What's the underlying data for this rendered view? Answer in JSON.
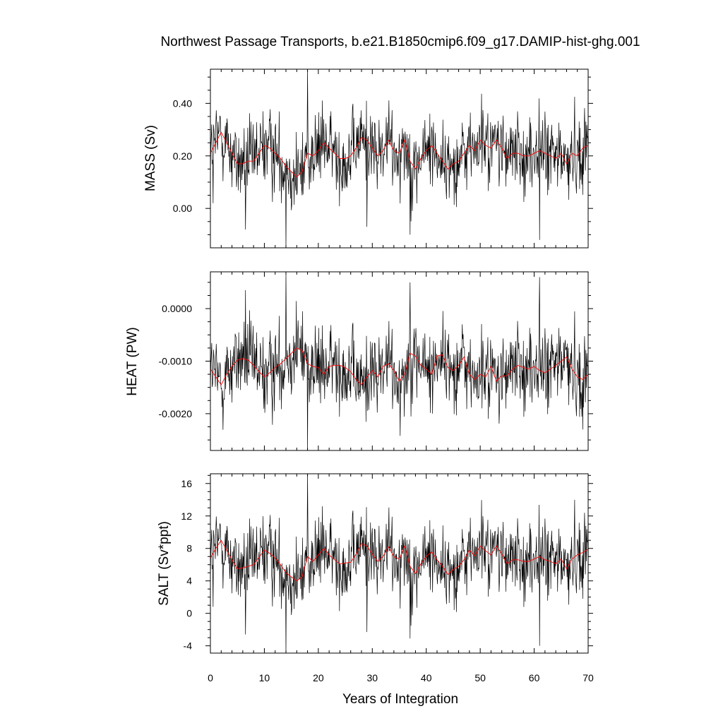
{
  "chart_data": {
    "type": "line",
    "title": "Northwest Passage Transports, b.e21.B1850cmip6.f09_g17.DAMIP-hist-ghg.001",
    "xlabel": "Years of Integration",
    "xlim": [
      0,
      70
    ],
    "xticks": [
      0,
      10,
      20,
      30,
      40,
      50,
      60,
      70
    ],
    "xtick_labels": [
      "0",
      "10",
      "20",
      "30",
      "40",
      "50",
      "60",
      "70"
    ],
    "line_colors": {
      "monthly": "#000000",
      "smoothed": "#ff0000"
    },
    "panels": [
      {
        "ylabel": "MASS (Sv)",
        "ylim": [
          -0.15,
          0.53
        ],
        "yticks": [
          0.0,
          0.2,
          0.4
        ],
        "ytick_labels": [
          "0.00",
          "0.20",
          "0.40"
        ],
        "smoothed": {
          "x": [
            0,
            1,
            2,
            3,
            4,
            5,
            6,
            7,
            8,
            9,
            10,
            11,
            12,
            13,
            14,
            15,
            16,
            17,
            18,
            19,
            20,
            21,
            22,
            23,
            24,
            25,
            26,
            27,
            28,
            29,
            30,
            31,
            32,
            33,
            34,
            35,
            36,
            37,
            38,
            39,
            40,
            41,
            42,
            43,
            44,
            45,
            46,
            47,
            48,
            49,
            50,
            51,
            52,
            53,
            54,
            55,
            56,
            57,
            58,
            59,
            60,
            61,
            62,
            63,
            64,
            65,
            66,
            67,
            68,
            69,
            70
          ],
          "y": [
            0.21,
            0.25,
            0.29,
            0.25,
            0.21,
            0.17,
            0.17,
            0.18,
            0.18,
            0.21,
            0.24,
            0.23,
            0.21,
            0.19,
            0.16,
            0.14,
            0.12,
            0.14,
            0.21,
            0.2,
            0.22,
            0.25,
            0.23,
            0.21,
            0.19,
            0.19,
            0.2,
            0.23,
            0.27,
            0.26,
            0.23,
            0.2,
            0.22,
            0.26,
            0.22,
            0.21,
            0.26,
            0.18,
            0.15,
            0.19,
            0.22,
            0.24,
            0.21,
            0.18,
            0.15,
            0.17,
            0.18,
            0.21,
            0.24,
            0.22,
            0.26,
            0.24,
            0.23,
            0.26,
            0.23,
            0.19,
            0.21,
            0.21,
            0.2,
            0.2,
            0.21,
            0.22,
            0.21,
            0.2,
            0.19,
            0.21,
            0.17,
            0.21,
            0.2,
            0.23,
            0.24
          ]
        },
        "monthly_stats": {
          "mean": 0.205,
          "std": 0.075,
          "min": -0.15,
          "max": 0.53
        },
        "extreme_points": [
          {
            "x": 0.5,
            "y": 0.02
          },
          {
            "x": 6.5,
            "y": -0.08
          },
          {
            "x": 14.0,
            "y": -0.15
          },
          {
            "x": 18.0,
            "y": 0.53
          },
          {
            "x": 29.0,
            "y": -0.07
          },
          {
            "x": 37.0,
            "y": -0.1
          },
          {
            "x": 61.0,
            "y": -0.12
          }
        ]
      },
      {
        "ylabel": "HEAT (PW)",
        "ylim": [
          -0.0027,
          0.0007
        ],
        "yticks": [
          -0.002,
          -0.001,
          0.0
        ],
        "ytick_labels": [
          "-0.0020",
          "-0.0010",
          "0.0000"
        ],
        "smoothed": {
          "x": [
            0,
            1,
            2,
            3,
            4,
            5,
            6,
            7,
            8,
            9,
            10,
            11,
            12,
            13,
            14,
            15,
            16,
            17,
            18,
            19,
            20,
            21,
            22,
            23,
            24,
            25,
            26,
            27,
            28,
            29,
            30,
            31,
            32,
            33,
            34,
            35,
            36,
            37,
            38,
            39,
            40,
            41,
            42,
            43,
            44,
            45,
            46,
            47,
            48,
            49,
            50,
            51,
            52,
            53,
            54,
            55,
            56,
            57,
            58,
            59,
            60,
            61,
            62,
            63,
            64,
            65,
            66,
            67,
            68,
            69,
            70
          ],
          "y": [
            -0.00115,
            -0.0013,
            -0.00145,
            -0.00125,
            -0.0011,
            -0.00098,
            -0.00095,
            -0.00098,
            -0.00108,
            -0.0012,
            -0.0013,
            -0.00122,
            -0.00112,
            -0.00105,
            -0.00095,
            -0.00085,
            -0.00075,
            -0.0008,
            -0.00105,
            -0.0011,
            -0.00112,
            -0.00125,
            -0.0011,
            -0.00108,
            -0.00108,
            -0.00112,
            -0.0012,
            -0.00135,
            -0.00145,
            -0.0013,
            -0.00118,
            -0.0013,
            -0.0011,
            -0.00105,
            -0.00118,
            -0.00138,
            -0.00125,
            -0.00085,
            -0.0009,
            -0.00108,
            -0.00115,
            -0.00125,
            -0.0009,
            -0.00088,
            -0.00112,
            -0.00118,
            -0.00108,
            -0.00092,
            -0.00125,
            -0.00135,
            -0.00125,
            -0.0013,
            -0.0011,
            -0.00138,
            -0.00128,
            -0.00128,
            -0.00115,
            -0.00108,
            -0.00112,
            -0.00115,
            -0.0011,
            -0.00118,
            -0.00122,
            -0.00115,
            -0.00108,
            -0.001,
            -0.00092,
            -0.00115,
            -0.0013,
            -0.00135,
            -0.00125
          ]
        },
        "monthly_stats": {
          "mean": -0.00112,
          "std": 0.0004,
          "min": -0.0027,
          "max": 0.0007
        },
        "extreme_points": [
          {
            "x": 6.5,
            "y": 0.00035
          },
          {
            "x": 14.0,
            "y": 0.0007
          },
          {
            "x": 18.0,
            "y": -0.0027
          },
          {
            "x": 37.0,
            "y": 0.0005
          },
          {
            "x": 61.0,
            "y": 0.0006
          }
        ]
      },
      {
        "ylabel": "SALT (Sv*ppt)",
        "ylim": [
          -4.9,
          17.2
        ],
        "yticks": [
          -4,
          0,
          4,
          8,
          12,
          16
        ],
        "ytick_labels": [
          "-4",
          "0",
          "4",
          "8",
          "12",
          "16"
        ],
        "smoothed": {
          "x": [
            0,
            1,
            2,
            3,
            4,
            5,
            6,
            7,
            8,
            9,
            10,
            11,
            12,
            13,
            14,
            15,
            16,
            17,
            18,
            19,
            20,
            21,
            22,
            23,
            24,
            25,
            26,
            27,
            28,
            29,
            30,
            31,
            32,
            33,
            34,
            35,
            36,
            37,
            38,
            39,
            40,
            41,
            42,
            43,
            44,
            45,
            46,
            47,
            48,
            49,
            50,
            51,
            52,
            53,
            54,
            55,
            56,
            57,
            58,
            59,
            60,
            61,
            62,
            63,
            64,
            65,
            66,
            67,
            68,
            69,
            70
          ],
          "y": [
            6.8,
            8.0,
            9.0,
            7.8,
            6.6,
            5.5,
            5.6,
            5.8,
            6.0,
            6.9,
            7.8,
            7.4,
            6.8,
            6.0,
            5.0,
            4.5,
            4.0,
            4.5,
            7.0,
            6.4,
            7.2,
            8.0,
            7.2,
            6.6,
            6.1,
            6.2,
            6.3,
            7.3,
            8.6,
            8.3,
            7.3,
            6.4,
            7.0,
            8.2,
            7.0,
            6.7,
            8.3,
            5.8,
            4.9,
            6.1,
            7.0,
            7.6,
            6.6,
            5.8,
            4.8,
            5.4,
            5.8,
            6.6,
            7.8,
            7.1,
            8.3,
            7.7,
            7.2,
            8.3,
            7.3,
            6.1,
            6.6,
            6.6,
            6.4,
            6.4,
            6.7,
            7.0,
            6.6,
            6.4,
            6.1,
            6.7,
            5.5,
            6.7,
            7.2,
            7.5,
            7.9
          ]
        },
        "monthly_stats": {
          "mean": 6.7,
          "std": 2.4,
          "min": -4.9,
          "max": 17.2
        },
        "extreme_points": [
          {
            "x": 0.5,
            "y": 0.8
          },
          {
            "x": 6.5,
            "y": -2.6
          },
          {
            "x": 14.0,
            "y": -4.9
          },
          {
            "x": 18.0,
            "y": 17.2
          },
          {
            "x": 29.0,
            "y": -2.3
          },
          {
            "x": 37.0,
            "y": -3.1
          },
          {
            "x": 61.0,
            "y": -4.0
          }
        ]
      }
    ]
  }
}
